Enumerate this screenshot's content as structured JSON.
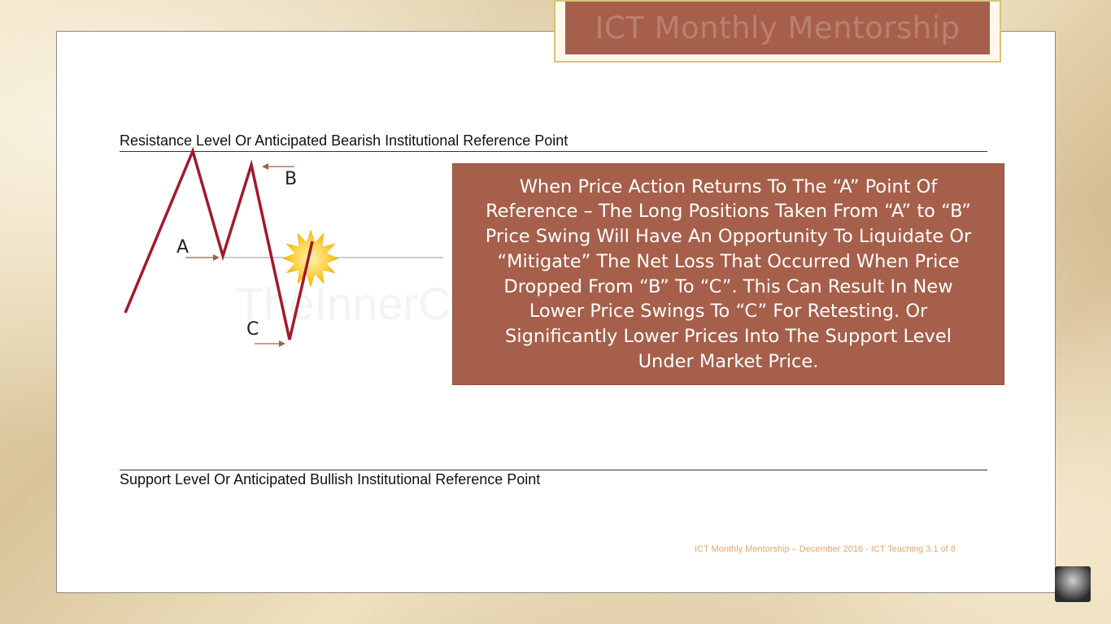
{
  "title": "ICT Monthly Mentorship",
  "resistance_label": "Resistance Level Or Anticipated Bearish Institutional Reference Point",
  "support_label": "Support Level Or Anticipated Bullish Institutional Reference Point",
  "diagram": {
    "point_a": "A",
    "point_b": "B",
    "point_c": "C",
    "watermark": "TheInnerCircle",
    "line_color": "#a3182d",
    "arrow_color": "#a0604c"
  },
  "explanation_lines": [
    "When Price Action Returns To The “A” Point Of",
    "Reference – The Long Positions Taken From “A” to “B”",
    "Price Swing Will Have An Opportunity To Liquidate Or",
    "“Mitigate” The Net Loss That Occurred When Price",
    "Dropped From “B” To “C”.  This Can Result In New",
    "Lower Price Swings To “C” For Retesting.  Or",
    "Significantly Lower Prices Into The Support Level",
    "Under Market Price."
  ],
  "footer": "ICT Monthly Mentorship – December 2016 - ICT Teaching 3.1 of 8",
  "colors": {
    "box_fill": "#a65f4a",
    "footer_text": "#e2a86b"
  }
}
